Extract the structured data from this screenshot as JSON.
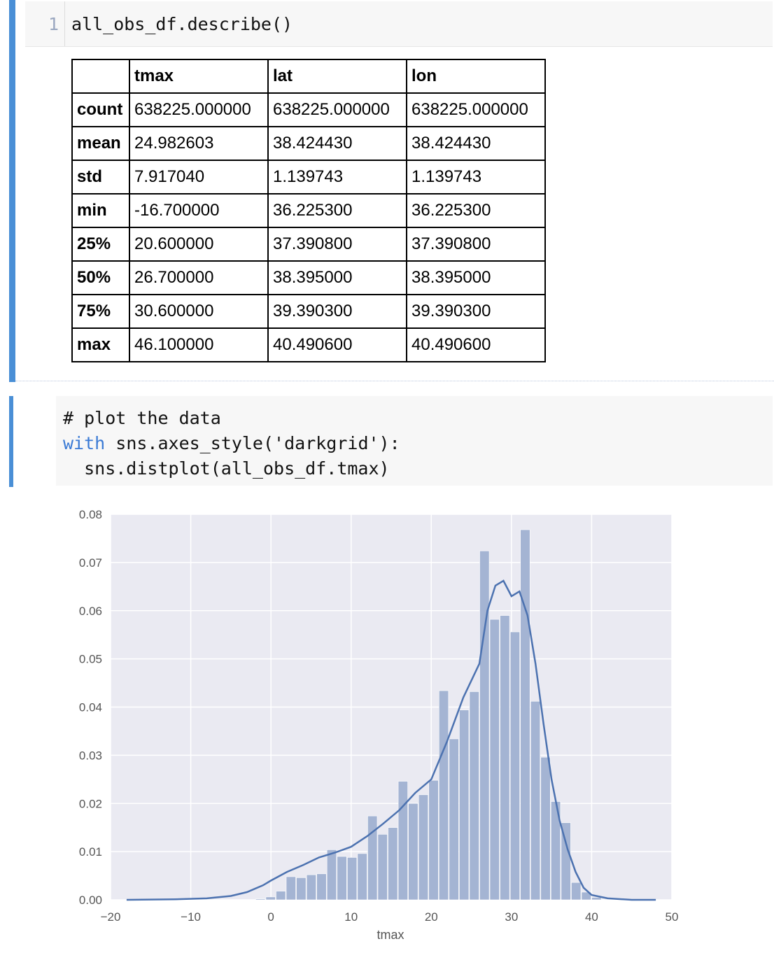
{
  "cell1": {
    "line_number": "1",
    "code": "all_obs_df.describe()"
  },
  "describe_table": {
    "columns": [
      "",
      "tmax",
      "lat",
      "lon"
    ],
    "rows": [
      {
        "label": "count",
        "values": [
          "638225.000000",
          "638225.000000",
          "638225.000000"
        ]
      },
      {
        "label": "mean",
        "values": [
          "24.982603",
          "38.424430",
          "38.424430"
        ]
      },
      {
        "label": "std",
        "values": [
          "7.917040",
          "1.139743",
          "1.139743"
        ]
      },
      {
        "label": "min",
        "values": [
          "-16.700000",
          "36.225300",
          "36.225300"
        ]
      },
      {
        "label": "25%",
        "values": [
          "20.600000",
          "37.390800",
          "37.390800"
        ]
      },
      {
        "label": "50%",
        "values": [
          "26.700000",
          "38.395000",
          "38.395000"
        ]
      },
      {
        "label": "75%",
        "values": [
          "30.600000",
          "39.390300",
          "39.390300"
        ]
      },
      {
        "label": "max",
        "values": [
          "46.100000",
          "40.490600",
          "40.490600"
        ]
      }
    ]
  },
  "cell2": {
    "line1": "# plot the data",
    "line2_keyword": "with",
    "line2_rest": " sns.axes_style('darkgrid'):",
    "line3": "  sns.distplot(all_obs_df.tmax)"
  },
  "colors": {
    "accent_bar": "#4a8fd6",
    "axes_bg": "#eaeaf2",
    "hist_fill": "#a4b4d3",
    "kde_line": "#4c72b0"
  },
  "chart_data": {
    "type": "bar",
    "title": "",
    "xlabel": "tmax",
    "ylabel": "",
    "xlim": [
      -20,
      50
    ],
    "ylim": [
      0,
      0.08
    ],
    "x_ticks": [
      "−20",
      "−10",
      "0",
      "10",
      "20",
      "30",
      "40",
      "50"
    ],
    "y_ticks": [
      "0.00",
      "0.01",
      "0.02",
      "0.03",
      "0.04",
      "0.05",
      "0.06",
      "0.07",
      "0.08"
    ],
    "grid": true,
    "histogram": {
      "bin_width": 1.27,
      "bins": [
        {
          "x": -1.9,
          "density": 0.0002
        },
        {
          "x": -0.63,
          "density": 0.0006
        },
        {
          "x": 0.64,
          "density": 0.0018
        },
        {
          "x": 1.91,
          "density": 0.0048
        },
        {
          "x": 3.18,
          "density": 0.0046
        },
        {
          "x": 4.45,
          "density": 0.0052
        },
        {
          "x": 5.72,
          "density": 0.0054
        },
        {
          "x": 6.99,
          "density": 0.0104
        },
        {
          "x": 8.26,
          "density": 0.009
        },
        {
          "x": 9.53,
          "density": 0.0088
        },
        {
          "x": 10.8,
          "density": 0.0096
        },
        {
          "x": 12.07,
          "density": 0.0174
        },
        {
          "x": 13.34,
          "density": 0.0136
        },
        {
          "x": 14.61,
          "density": 0.015
        },
        {
          "x": 15.88,
          "density": 0.0246
        },
        {
          "x": 17.15,
          "density": 0.02
        },
        {
          "x": 18.42,
          "density": 0.0218
        },
        {
          "x": 19.69,
          "density": 0.0248
        },
        {
          "x": 20.96,
          "density": 0.0434
        },
        {
          "x": 22.23,
          "density": 0.0334
        },
        {
          "x": 23.5,
          "density": 0.0394
        },
        {
          "x": 24.77,
          "density": 0.0432
        },
        {
          "x": 26.04,
          "density": 0.0724
        },
        {
          "x": 27.31,
          "density": 0.0582
        },
        {
          "x": 28.58,
          "density": 0.059
        },
        {
          "x": 29.85,
          "density": 0.0556
        },
        {
          "x": 31.12,
          "density": 0.0768
        },
        {
          "x": 32.39,
          "density": 0.0412
        },
        {
          "x": 33.66,
          "density": 0.0296
        },
        {
          "x": 34.93,
          "density": 0.0204
        },
        {
          "x": 36.2,
          "density": 0.016
        },
        {
          "x": 37.47,
          "density": 0.0036
        },
        {
          "x": 38.74,
          "density": 0.0016
        },
        {
          "x": 40.01,
          "density": 0.0005
        }
      ]
    },
    "kde": {
      "x": [
        -18,
        -12,
        -8,
        -5,
        -3,
        -1,
        0,
        2,
        4,
        6,
        8,
        10,
        12,
        14,
        16,
        18,
        20,
        22,
        24,
        26,
        27,
        28,
        29,
        30,
        31,
        32,
        33,
        34,
        35,
        36,
        37,
        38,
        39,
        40,
        42,
        45,
        48
      ],
      "y": [
        0.0,
        0.0001,
        0.0003,
        0.0008,
        0.0016,
        0.003,
        0.004,
        0.0058,
        0.0072,
        0.0088,
        0.0098,
        0.011,
        0.0132,
        0.0158,
        0.0186,
        0.0222,
        0.025,
        0.033,
        0.042,
        0.049,
        0.06,
        0.0652,
        0.0662,
        0.063,
        0.064,
        0.059,
        0.049,
        0.0365,
        0.025,
        0.0165,
        0.0105,
        0.0058,
        0.0025,
        0.001,
        0.0003,
        0.0,
        0.0
      ]
    }
  }
}
